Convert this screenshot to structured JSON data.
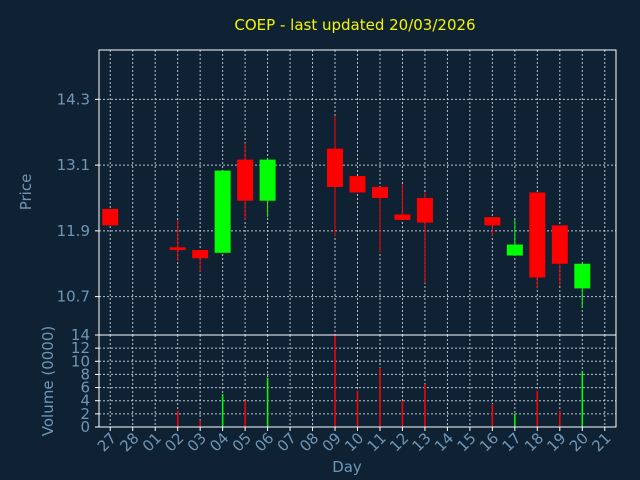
{
  "chart_data": [
    {
      "type": "candlestick",
      "title": "COEP - last updated 20/03/2026",
      "xlabel": "Day",
      "ylabel": "Price",
      "ylim": [
        10.0,
        15.2
      ],
      "yticks": [
        10.7,
        11.9,
        13.1,
        14.3
      ],
      "ytick_labels": [
        "10.7",
        "11.9",
        "13.1",
        "14.3"
      ],
      "grid": true,
      "categories": [
        "27",
        "28",
        "01",
        "02",
        "03",
        "04",
        "05",
        "06",
        "07",
        "08",
        "09",
        "10",
        "11",
        "12",
        "13",
        "14",
        "15",
        "16",
        "17",
        "18",
        "19",
        "20",
        "21"
      ],
      "up_color": "#00ff00",
      "down_color": "#ff0000",
      "candles": [
        {
          "x": "27",
          "open": 12.3,
          "close": 12.0,
          "high": 12.3,
          "low": 12.0
        },
        {
          "x": "02",
          "open": 11.6,
          "close": 11.55,
          "high": 12.1,
          "low": 11.35
        },
        {
          "x": "03",
          "open": 11.55,
          "close": 11.4,
          "high": 11.55,
          "low": 11.15
        },
        {
          "x": "04",
          "open": 11.5,
          "close": 13.0,
          "high": 13.0,
          "low": 11.5
        },
        {
          "x": "05",
          "open": 13.2,
          "close": 12.45,
          "high": 13.5,
          "low": 12.1
        },
        {
          "x": "06",
          "open": 12.45,
          "close": 13.2,
          "high": 13.2,
          "low": 12.15
        },
        {
          "x": "09",
          "open": 13.4,
          "close": 12.7,
          "high": 14.0,
          "low": 11.8
        },
        {
          "x": "10",
          "open": 12.9,
          "close": 12.6,
          "high": 12.9,
          "low": 12.6
        },
        {
          "x": "11",
          "open": 12.7,
          "close": 12.5,
          "high": 12.7,
          "low": 11.5
        },
        {
          "x": "12",
          "open": 12.2,
          "close": 12.1,
          "high": 12.75,
          "low": 12.1
        },
        {
          "x": "13",
          "open": 12.5,
          "close": 12.05,
          "high": 12.6,
          "low": 10.95
        },
        {
          "x": "16",
          "open": 12.15,
          "close": 12.0,
          "high": 12.15,
          "low": 11.8
        },
        {
          "x": "17",
          "open": 11.45,
          "close": 11.65,
          "high": 12.1,
          "low": 11.45
        },
        {
          "x": "18",
          "open": 12.6,
          "close": 11.05,
          "high": 12.6,
          "low": 10.85
        },
        {
          "x": "19",
          "open": 12.0,
          "close": 11.3,
          "high": 12.0,
          "low": 10.9
        },
        {
          "x": "20",
          "open": 10.85,
          "close": 11.3,
          "high": 11.3,
          "low": 10.5
        }
      ]
    },
    {
      "type": "bar",
      "xlabel": "Day",
      "ylabel": "Volume (0000)",
      "ylim": [
        0,
        14
      ],
      "yticks": [
        0,
        2,
        4,
        6,
        8,
        10,
        12,
        14
      ],
      "ytick_labels": [
        "0",
        "2",
        "4",
        "6",
        "8",
        "10",
        "12",
        "14"
      ],
      "grid": true,
      "categories": [
        "27",
        "28",
        "01",
        "02",
        "03",
        "04",
        "05",
        "06",
        "07",
        "08",
        "09",
        "10",
        "11",
        "12",
        "13",
        "14",
        "15",
        "16",
        "17",
        "18",
        "19",
        "20",
        "21"
      ],
      "bars": [
        {
          "x": "02",
          "value": 2.5,
          "direction": "down"
        },
        {
          "x": "03",
          "value": 1.0,
          "direction": "down"
        },
        {
          "x": "04",
          "value": 5.0,
          "direction": "up"
        },
        {
          "x": "05",
          "value": 4.0,
          "direction": "down"
        },
        {
          "x": "06",
          "value": 7.5,
          "direction": "up"
        },
        {
          "x": "09",
          "value": 14.0,
          "direction": "down"
        },
        {
          "x": "10",
          "value": 5.5,
          "direction": "down"
        },
        {
          "x": "11",
          "value": 9.0,
          "direction": "down"
        },
        {
          "x": "12",
          "value": 4.0,
          "direction": "down"
        },
        {
          "x": "13",
          "value": 6.5,
          "direction": "down"
        },
        {
          "x": "16",
          "value": 3.5,
          "direction": "down"
        },
        {
          "x": "17",
          "value": 2.0,
          "direction": "up"
        },
        {
          "x": "18",
          "value": 5.5,
          "direction": "down"
        },
        {
          "x": "19",
          "value": 2.5,
          "direction": "down"
        },
        {
          "x": "20",
          "value": 8.5,
          "direction": "up"
        }
      ]
    }
  ]
}
